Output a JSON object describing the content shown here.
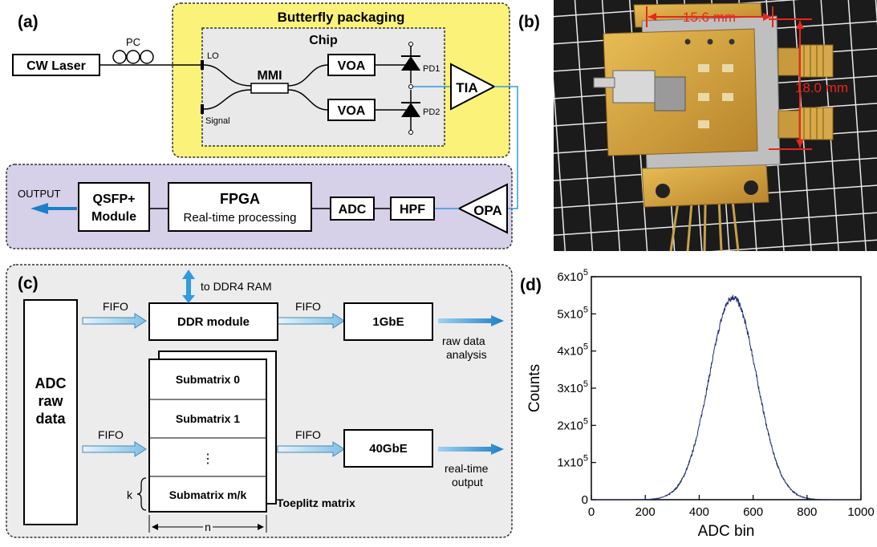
{
  "panel_a": {
    "label": "(a)",
    "butterfly_title": "Butterfly packaging",
    "chip_title": "Chip",
    "cw_laser": "CW Laser",
    "pc": "PC",
    "lo": "LO",
    "signal": "Signal",
    "mmi": "MMI",
    "voa_top": "VOA",
    "voa_bottom": "VOA",
    "pd1": "PD1",
    "pd2": "PD2",
    "tia": "TIA",
    "opa": "OPA",
    "hpf": "HPF",
    "adc": "ADC",
    "fpga_title": "FPGA",
    "fpga_sub": "Real-time processing",
    "qsfp_line1": "QSFP+",
    "qsfp_line2": "Module",
    "output": "OUTPUT",
    "colors": {
      "butterfly_fill": "#fbf27a",
      "chip_fill": "#e9e9e9",
      "processing_fill": "#d6d0e8",
      "signal_line": "#2e9be0"
    }
  },
  "panel_b": {
    "label": "(b)",
    "width_dim": "15.6 mm",
    "height_dim": "18.0 mm",
    "colors": {
      "dimension": "#e8261c",
      "gold": "#d9a53a",
      "grid": "#ffffff",
      "background": "#1a1a1a"
    }
  },
  "panel_c": {
    "label": "(c)",
    "adc_line1": "ADC",
    "adc_line2": "raw",
    "adc_line3": "data",
    "fifo_1": "FIFO",
    "fifo_2": "FIFO",
    "fifo_3": "FIFO",
    "fifo_4": "FIFO",
    "to_ddr4": "to DDR4 RAM",
    "ddr_module": "DDR module",
    "gbe1": "1GbE",
    "gbe40": "40GbE",
    "raw_line1": "raw data",
    "raw_line2": "analysis",
    "rt_line1": "real-time",
    "rt_line2": "output",
    "submatrix_0": "Submatrix 0",
    "submatrix_1": "Submatrix 1",
    "dots": "⋮",
    "submatrix_mk": "Submatrix m/k",
    "toeplitz": "Toeplitz matrix",
    "k": "k",
    "n": "n"
  },
  "panel_d": {
    "label": "(d)",
    "chart_data": {
      "type": "line",
      "xlabel": "ADC bin",
      "ylabel": "Counts",
      "xlim": [
        0,
        1000
      ],
      "ylim": [
        0,
        600000
      ],
      "x_ticks": [
        "0",
        "200",
        "400",
        "600",
        "800",
        "1000"
      ],
      "y_ticks": [
        {
          "base": "0",
          "exp": ""
        },
        {
          "base": "1x10",
          "exp": "5"
        },
        {
          "base": "2x10",
          "exp": "5"
        },
        {
          "base": "3x10",
          "exp": "5"
        },
        {
          "base": "4x10",
          "exp": "5"
        },
        {
          "base": "5x10",
          "exp": "5"
        },
        {
          "base": "6x10",
          "exp": "5"
        }
      ],
      "series": [
        {
          "distribution": "gaussian",
          "peak_x": 525,
          "peak_y": 545000,
          "sigma": 88,
          "color": "#1f2a78"
        }
      ]
    }
  }
}
